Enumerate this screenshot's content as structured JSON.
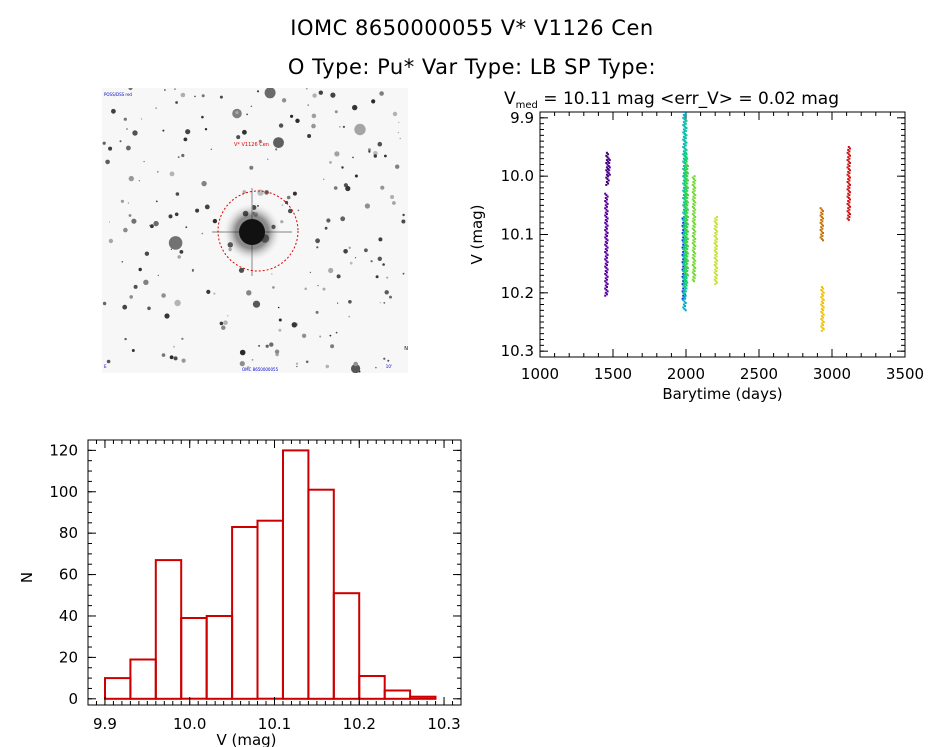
{
  "header": {
    "title": "IOMC 8650000055    V* V1126 Cen",
    "subtitle": "O Type: Pu*  Var Type: LB  SP Type:"
  },
  "image_panel": {
    "target_label": "V* V1126 Cen",
    "corner_labels": [
      "POSS/DSS red",
      "N",
      "E",
      "10'",
      "OMC 8650000055"
    ]
  },
  "colors": {
    "histogram": "#cc0000",
    "marker": "#d00000",
    "axis": "#000000"
  },
  "chart_data": [
    {
      "type": "scatter",
      "title_prefix": "V",
      "title_sub": "med",
      "title_rest": " = 10.11 mag <err_V> = 0.02 mag",
      "xlabel": "Barytime (days)",
      "ylabel": "V (mag)",
      "xlim": [
        1000,
        3500
      ],
      "ylim": [
        10.31,
        9.89
      ],
      "xticks": [
        1000,
        1500,
        2000,
        2500,
        3000,
        3500
      ],
      "xtick_labels": [
        "1000",
        "1500",
        "2000",
        "2500",
        "3000",
        "3500"
      ],
      "yticks": [
        9.9,
        10.0,
        10.1,
        10.2,
        10.3
      ],
      "ytick_labels": [
        "9.9",
        "10.0",
        "10.1",
        "10.2",
        "10.3"
      ],
      "groups": [
        {
          "x": 1455,
          "y_range": [
            10.03,
            10.205
          ],
          "color": "#5a00a0"
        },
        {
          "x": 1462,
          "y_range": [
            9.96,
            10.015
          ],
          "color": "#3c0070"
        },
        {
          "x": 1470,
          "y_range": [
            9.97,
            10.0
          ],
          "color": "#4a0090"
        },
        {
          "x": 1985,
          "y_range": [
            10.07,
            10.21
          ],
          "color": "#1030d0"
        },
        {
          "x": 1990,
          "y_range": [
            9.88,
            10.23
          ],
          "color": "#00a8c8"
        },
        {
          "x": 1995,
          "y_range": [
            9.9,
            10.2
          ],
          "color": "#10c8a0"
        },
        {
          "x": 2000,
          "y_range": [
            9.96,
            10.19
          ],
          "color": "#10d060"
        },
        {
          "x": 2005,
          "y_range": [
            9.98,
            10.17
          ],
          "color": "#40d040"
        },
        {
          "x": 2055,
          "y_range": [
            10.0,
            10.18
          ],
          "color": "#70d830"
        },
        {
          "x": 2205,
          "y_range": [
            10.07,
            10.185
          ],
          "color": "#c8e030"
        },
        {
          "x": 2930,
          "y_range": [
            10.055,
            10.11
          ],
          "color": "#c87000"
        },
        {
          "x": 2935,
          "y_range": [
            10.19,
            10.265
          ],
          "color": "#f0c000"
        },
        {
          "x": 3115,
          "y_range": [
            9.95,
            10.075
          ],
          "color": "#d01010"
        }
      ]
    },
    {
      "type": "bar",
      "xlabel": "V (mag)",
      "ylabel": "N",
      "xlim": [
        9.88,
        10.32
      ],
      "ylim": [
        -3,
        125
      ],
      "bin_edges": [
        9.9,
        9.93,
        9.96,
        9.99,
        10.02,
        10.05,
        10.08,
        10.11,
        10.14,
        10.17,
        10.2,
        10.23,
        10.26,
        10.29
      ],
      "values": [
        10,
        19,
        67,
        39,
        40,
        83,
        86,
        120,
        101,
        51,
        11,
        4,
        1
      ],
      "xticks": [
        9.9,
        10.0,
        10.1,
        10.2,
        10.3
      ],
      "xtick_labels": [
        "9.9",
        "10.0",
        "10.1",
        "10.2",
        "10.3"
      ],
      "yticks": [
        0,
        20,
        40,
        60,
        80,
        100,
        120
      ],
      "ytick_labels": [
        "0",
        "20",
        "40",
        "60",
        "80",
        "100",
        "120"
      ]
    }
  ]
}
